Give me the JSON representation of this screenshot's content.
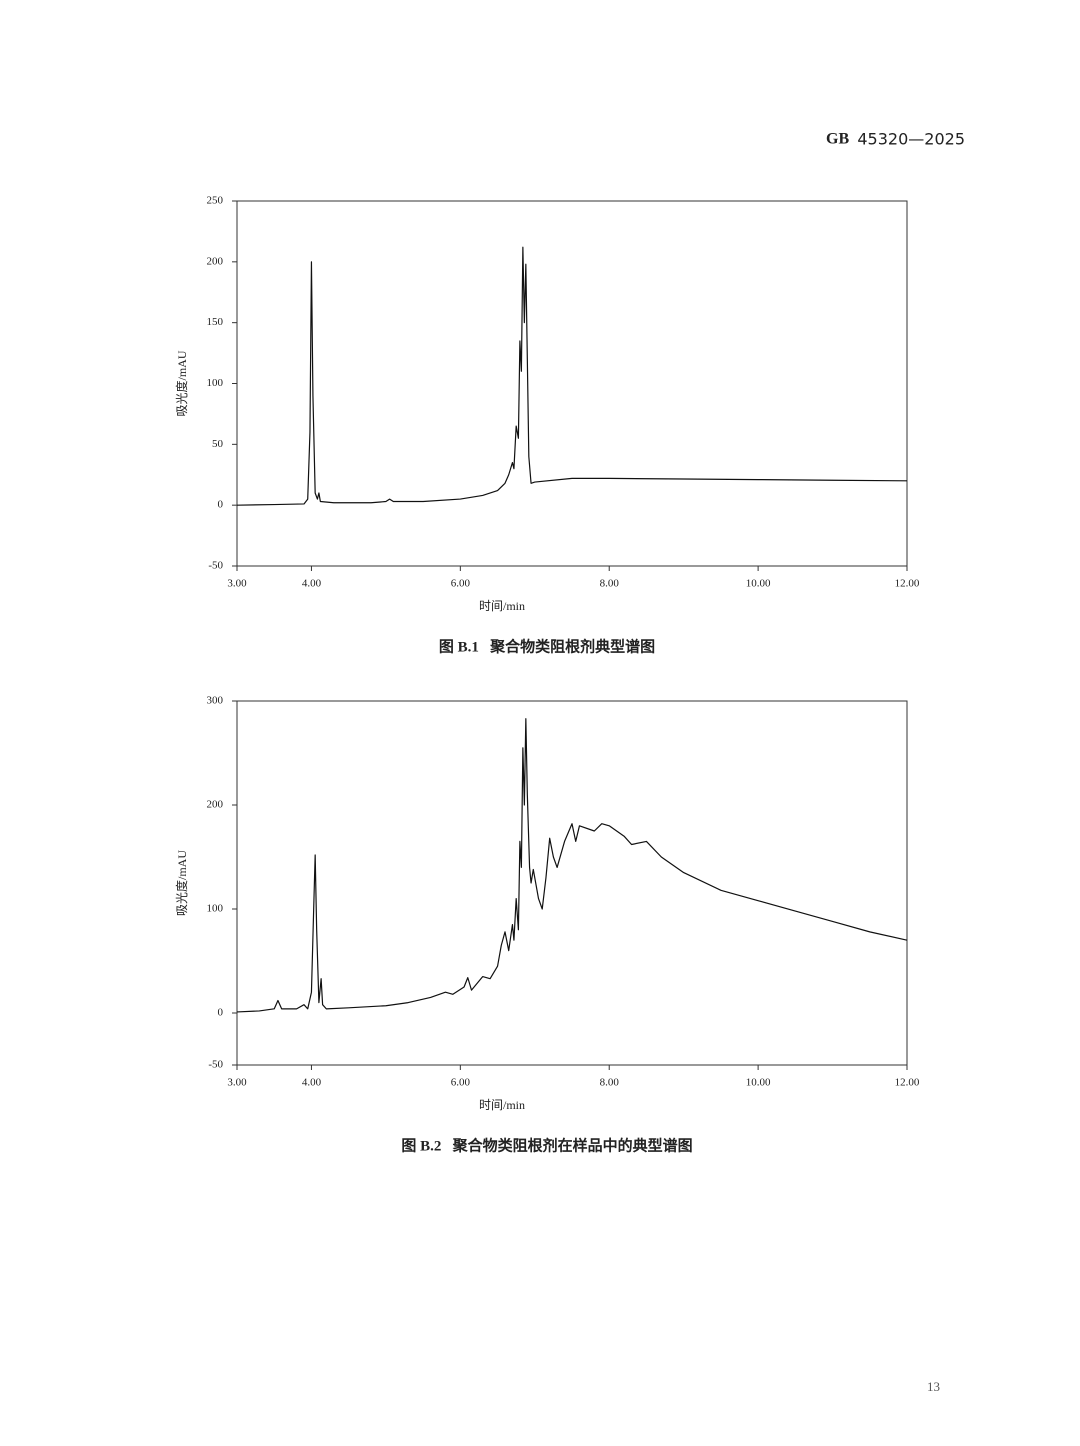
{
  "header": {
    "code": "GB",
    "number": "45320—2025"
  },
  "chart_data": [
    {
      "type": "line",
      "x_label": "时间/min",
      "y_label": "吸光度/mAU",
      "caption": "图 B.1   聚合物类阻根剂典型谱图",
      "xlim": [
        3,
        12
      ],
      "ylim": [
        -50,
        250
      ],
      "xticks": [
        {
          "value": 3,
          "label": "3.00"
        },
        {
          "value": 4,
          "label": "4.00"
        },
        {
          "value": 6,
          "label": "6.00"
        },
        {
          "value": 8,
          "label": "8.00"
        },
        {
          "value": 10,
          "label": "10.00"
        },
        {
          "value": 12,
          "label": "12.00"
        }
      ],
      "yticks": [
        -50,
        0,
        50,
        100,
        150,
        200,
        250
      ],
      "x": [
        3.0,
        3.5,
        3.9,
        3.95,
        3.98,
        4.0,
        4.02,
        4.05,
        4.08,
        4.1,
        4.12,
        4.3,
        4.8,
        5.0,
        5.05,
        5.1,
        5.5,
        6.0,
        6.3,
        6.5,
        6.6,
        6.65,
        6.7,
        6.72,
        6.75,
        6.78,
        6.8,
        6.82,
        6.84,
        6.86,
        6.88,
        6.9,
        6.92,
        6.95,
        7.0,
        7.5,
        8.0,
        9.0,
        10.0,
        11.0,
        12.0
      ],
      "series": [
        {
          "color": "#111111",
          "values": [
            0,
            0.5,
            1,
            5,
            60,
            200,
            90,
            10,
            5,
            10,
            3,
            2,
            2,
            3,
            5,
            3,
            3,
            5,
            8,
            12,
            18,
            25,
            35,
            30,
            65,
            55,
            135,
            110,
            212,
            150,
            198,
            120,
            40,
            18,
            19,
            22,
            22,
            21.5,
            21,
            20.5,
            20
          ]
        }
      ]
    },
    {
      "type": "line",
      "x_label": "时间/min",
      "y_label": "吸光度/mAU",
      "caption": "图 B.2   聚合物类阻根剂在样品中的典型谱图",
      "xlim": [
        3,
        12
      ],
      "ylim": [
        -50,
        300
      ],
      "xticks": [
        {
          "value": 3,
          "label": "3.00"
        },
        {
          "value": 4,
          "label": "4.00"
        },
        {
          "value": 6,
          "label": "6.00"
        },
        {
          "value": 8,
          "label": "8.00"
        },
        {
          "value": 10,
          "label": "10.00"
        },
        {
          "value": 12,
          "label": "12.00"
        }
      ],
      "yticks": [
        -50,
        0,
        100,
        200,
        300
      ],
      "x": [
        3.0,
        3.3,
        3.5,
        3.55,
        3.6,
        3.8,
        3.9,
        3.95,
        4.0,
        4.03,
        4.05,
        4.07,
        4.1,
        4.13,
        4.15,
        4.2,
        4.5,
        5.0,
        5.3,
        5.6,
        5.8,
        5.9,
        6.05,
        6.1,
        6.15,
        6.3,
        6.4,
        6.5,
        6.55,
        6.6,
        6.65,
        6.7,
        6.72,
        6.75,
        6.78,
        6.8,
        6.82,
        6.84,
        6.86,
        6.88,
        6.9,
        6.93,
        6.95,
        6.98,
        7.05,
        7.1,
        7.15,
        7.2,
        7.25,
        7.3,
        7.4,
        7.5,
        7.55,
        7.6,
        7.8,
        7.9,
        8.0,
        8.1,
        8.2,
        8.3,
        8.5,
        8.7,
        9.0,
        9.5,
        10.0,
        10.5,
        11.0,
        11.5,
        12.0
      ],
      "series": [
        {
          "color": "#111111",
          "values": [
            1,
            2,
            4,
            12,
            4,
            4,
            8,
            4,
            20,
            100,
            152,
            80,
            10,
            33,
            8,
            4,
            5,
            7,
            10,
            15,
            20,
            18,
            25,
            34,
            22,
            35,
            33,
            45,
            65,
            78,
            60,
            85,
            70,
            110,
            80,
            165,
            140,
            255,
            200,
            283,
            210,
            140,
            125,
            138,
            110,
            100,
            130,
            168,
            150,
            140,
            165,
            182,
            165,
            180,
            175,
            182,
            180,
            175,
            170,
            162,
            165,
            150,
            135,
            118,
            108,
            98,
            88,
            78,
            70
          ]
        }
      ]
    }
  ],
  "page_number": "13"
}
